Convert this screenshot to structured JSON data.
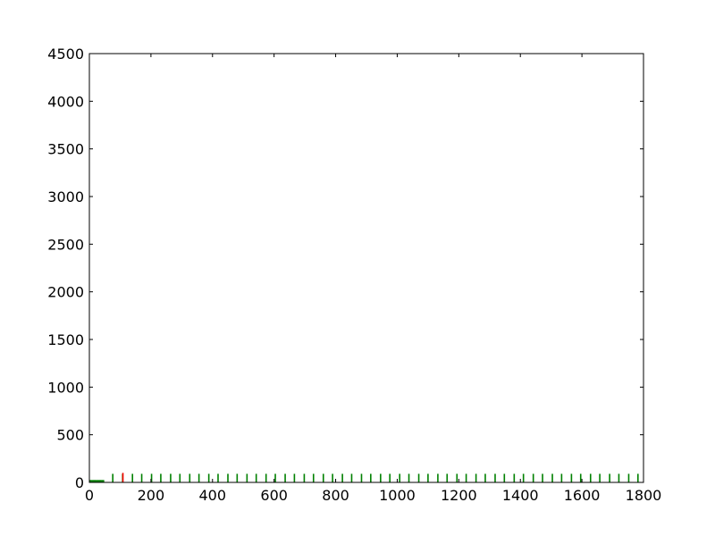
{
  "chart_data": {
    "type": "bar",
    "title": "",
    "xlabel": "",
    "ylabel": "",
    "xlim": [
      0,
      1800
    ],
    "ylim": [
      0,
      4500
    ],
    "grid": false,
    "x_ticks": [
      "0",
      "200",
      "400",
      "600",
      "800",
      "1000",
      "1200",
      "1400",
      "1600",
      "1800"
    ],
    "y_ticks": [
      "0",
      "500",
      "1000",
      "1500",
      "2000",
      "2500",
      "3000",
      "3500",
      "4000",
      "4500"
    ],
    "series": [
      {
        "color": "#008000",
        "x": [
          2,
          6,
          10,
          14,
          18,
          22,
          26,
          30,
          34,
          38,
          42,
          46,
          76,
          108,
          140,
          170,
          202,
          232,
          264,
          294,
          326,
          356,
          388,
          418,
          450,
          480,
          512,
          542,
          574,
          604,
          636,
          666,
          698,
          728,
          760,
          790,
          822,
          852,
          884,
          914,
          946,
          976,
          1008,
          1038,
          1070,
          1100,
          1132,
          1162,
          1194,
          1224,
          1256,
          1286,
          1318,
          1348,
          1380,
          1410,
          1442,
          1472,
          1504,
          1534,
          1566,
          1596,
          1628,
          1658,
          1690,
          1720,
          1752,
          1782
        ],
        "values": [
          25,
          25,
          25,
          25,
          25,
          25,
          25,
          25,
          25,
          25,
          25,
          25,
          90,
          90,
          90,
          90,
          90,
          90,
          90,
          90,
          90,
          90,
          90,
          90,
          90,
          90,
          90,
          90,
          90,
          90,
          90,
          90,
          90,
          90,
          90,
          90,
          90,
          90,
          90,
          90,
          90,
          90,
          90,
          90,
          90,
          90,
          90,
          90,
          90,
          90,
          90,
          90,
          90,
          90,
          90,
          90,
          90,
          90,
          90,
          90,
          90,
          90,
          90,
          90,
          90,
          90,
          90,
          90
        ]
      },
      {
        "color": "#ff0000",
        "x": [
          109
        ],
        "values": [
          100
        ]
      }
    ]
  }
}
